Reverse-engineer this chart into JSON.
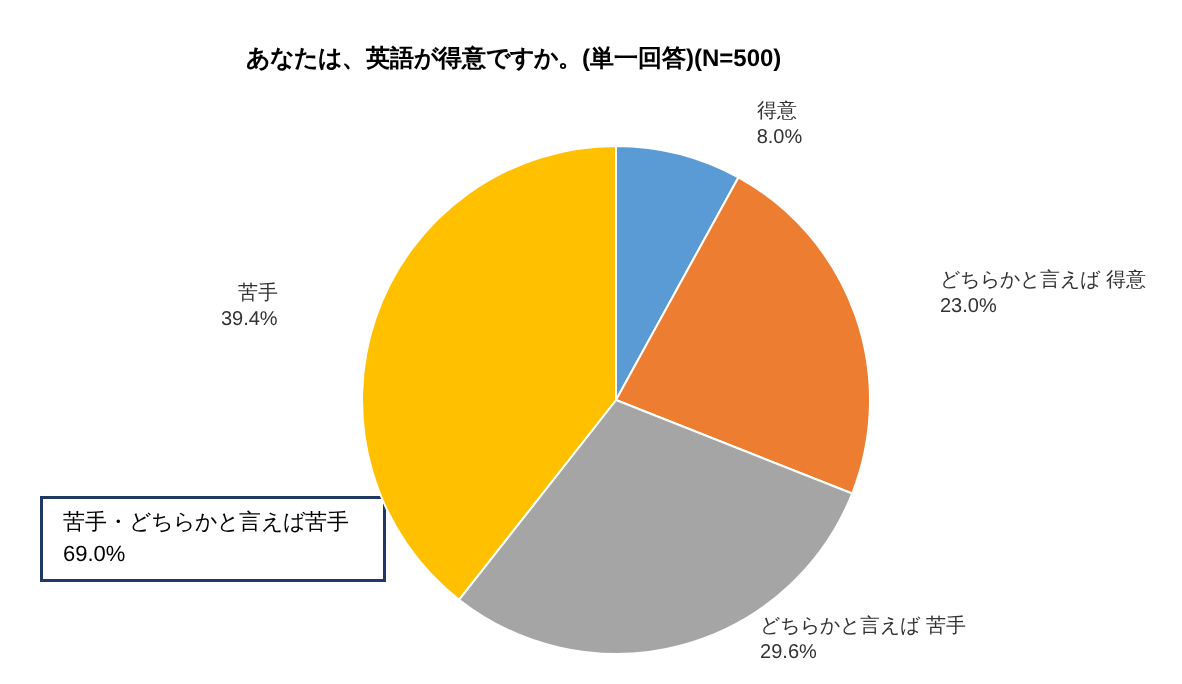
{
  "chart_data": {
    "type": "pie",
    "title": "あなたは、英語が得意ですか。(単一回答)(N=500)",
    "categories": [
      "得意",
      "どちらかと言えば 得意",
      "どちらかと言えば 苦手",
      "苦手"
    ],
    "values": [
      8.0,
      23.0,
      29.6,
      39.4
    ],
    "value_labels": [
      "8.0%",
      "23.0%",
      "29.6%",
      "39.4%"
    ],
    "colors": [
      "#5b9bd5",
      "#ed7d31",
      "#a5a5a5",
      "#ffc000"
    ],
    "annotations": [
      "苦手・どちらかと言えば苦手\n69.0%"
    ],
    "legend": false
  }
}
